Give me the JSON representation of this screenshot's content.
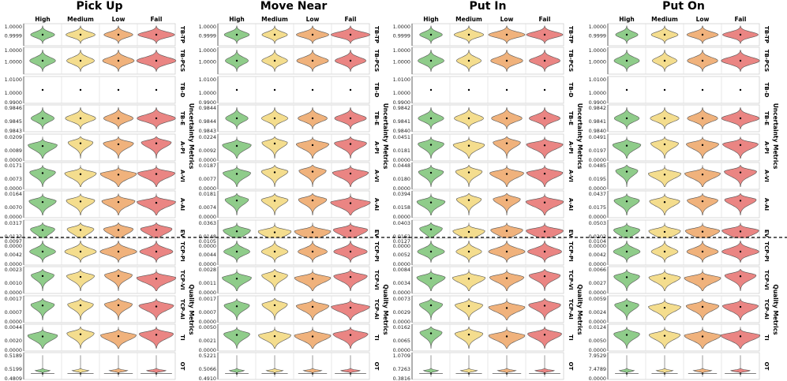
{
  "chart_data": {
    "type": "violin",
    "tasks": [
      "Pick Up",
      "Move Near",
      "Put In",
      "Put On"
    ],
    "categories": [
      "High",
      "Medium",
      "Low",
      "Fail"
    ],
    "colors": {
      "High": "#8fcc8a",
      "Medium": "#f4dd8e",
      "Low": "#f0b27c",
      "Fail": "#ea8583",
      "divider": "#000000"
    },
    "metric_groups": [
      {
        "name": "Uncertainty Metrics",
        "metrics": [
          "TB-TP",
          "TB-PCS",
          "TB-D",
          "TB-E",
          "A-PI",
          "A-VI",
          "A-AI",
          "EV"
        ]
      },
      {
        "name": "Quality Metrics",
        "metrics": [
          "TCP-PI",
          "TCP-VI",
          "TCP-AI",
          "TI",
          "OT"
        ]
      }
    ],
    "metrics": [
      "TB-TP",
      "TB-PCS",
      "TB-D",
      "TB-E",
      "A-PI",
      "A-VI",
      "A-AI",
      "EV",
      "TCP-PI",
      "TCP-VI",
      "TCP-AI",
      "TI",
      "OT"
    ],
    "shape_profiles": {
      "TB-TP": "mid",
      "TB-PCS": "mid",
      "TB-D": "dot",
      "TB-E": "mid",
      "A-PI": "skew",
      "A-VI": "skew",
      "A-AI": "skew",
      "EV": "skew",
      "TCP-PI": "mid",
      "TCP-VI": "skew",
      "TCP-AI": "skew",
      "TI": "skew",
      "OT": "spike"
    },
    "panels": [
      {
        "task": "Pick Up",
        "ticks": [
          [
            "1.0000",
            "0.9999"
          ],
          [
            "1.0000",
            "1.0000"
          ],
          [
            "1.0100",
            "1.0000",
            "0.9900"
          ],
          [
            "0.9846",
            "0.9845",
            "0.9843"
          ],
          [
            "0.0209",
            "0.0089",
            "0.0000"
          ],
          [
            "0.0171",
            "0.0073",
            "0.0000"
          ],
          [
            "0.0164",
            "0.0070",
            "0.0000"
          ],
          [
            "0.0317",
            "0.0133",
            "0.0000"
          ],
          [
            "0.0097",
            "0.0042",
            "0.0000"
          ],
          [
            "0.0023",
            "0.0010",
            "0.0000"
          ],
          [
            "0.0017",
            "0.0007",
            "0.0000"
          ],
          [
            "0.0044",
            "0.0020",
            "0.0000"
          ],
          [
            "0.5189",
            "0.5199",
            "0.4809"
          ]
        ]
      },
      {
        "task": "Move Near",
        "ticks": [
          [
            "1.0000",
            "0.9999"
          ],
          [
            "1.0000",
            "1.0000"
          ],
          [
            "1.0100",
            "1.0000",
            "0.9900"
          ],
          [
            "0.9844",
            "0.9844",
            "0.9843"
          ],
          [
            "0.0224",
            "0.0092",
            "0.0000"
          ],
          [
            "0.0187",
            "0.0077",
            "0.0000"
          ],
          [
            "0.0181",
            "0.0074",
            "0.0000"
          ],
          [
            "0.0363",
            "0.0148",
            "0.0000"
          ],
          [
            "0.0105",
            "0.0044",
            "0.0000"
          ],
          [
            "0.0028",
            "0.0011",
            "0.0000"
          ],
          [
            "0.0017",
            "0.0007",
            "0.0000"
          ],
          [
            "0.0050",
            "0.0021",
            "0.0000"
          ],
          [
            "0.5221",
            "0.5066",
            "0.4910"
          ]
        ]
      },
      {
        "task": "Put In",
        "ticks": [
          [
            "1.0000",
            "0.9999"
          ],
          [
            "1.0000",
            "1.0000"
          ],
          [
            "1.0100",
            "1.0000",
            "0.9900"
          ],
          [
            "0.9842",
            "0.9841",
            "0.9840"
          ],
          [
            "0.0451",
            "0.0181",
            "0.0000"
          ],
          [
            "0.0448",
            "0.0180",
            "0.0000"
          ],
          [
            "0.0394",
            "0.0158",
            "0.0000"
          ],
          [
            "0.0403",
            "0.0162",
            "0.0000"
          ],
          [
            "0.0127",
            "0.0052",
            "0.0000"
          ],
          [
            "0.0084",
            "0.0034",
            "0.0000"
          ],
          [
            "0.0073",
            "0.0029",
            "0.0000"
          ],
          [
            "0.0162",
            "0.0065",
            "0.0000"
          ],
          [
            "1.0709",
            "0.7263",
            "0.3816"
          ]
        ]
      },
      {
        "task": "Put On",
        "ticks": [
          [
            "1.0000",
            "0.9999"
          ],
          [
            "1.0000",
            "1.0000"
          ],
          [
            "1.0100",
            "1.0000",
            "0.9900"
          ],
          [
            "0.9842",
            "0.9841",
            "0.9840"
          ],
          [
            "0.0491",
            "0.0197",
            "0.0000"
          ],
          [
            "0.0485",
            "0.0195",
            "0.0000"
          ],
          [
            "0.0437",
            "0.0175",
            "0.0000"
          ],
          [
            "0.0503",
            "0.0202",
            "0.0000"
          ],
          [
            "0.0104",
            "0.0042",
            "0.0000"
          ],
          [
            "0.0066",
            "0.0027",
            "0.0000"
          ],
          [
            "0.0059",
            "0.0024",
            "0.0000"
          ],
          [
            "0.0124",
            "0.0050",
            "0.0000"
          ],
          [
            "7.9529",
            "7.4789",
            "0.0000"
          ]
        ]
      }
    ]
  }
}
